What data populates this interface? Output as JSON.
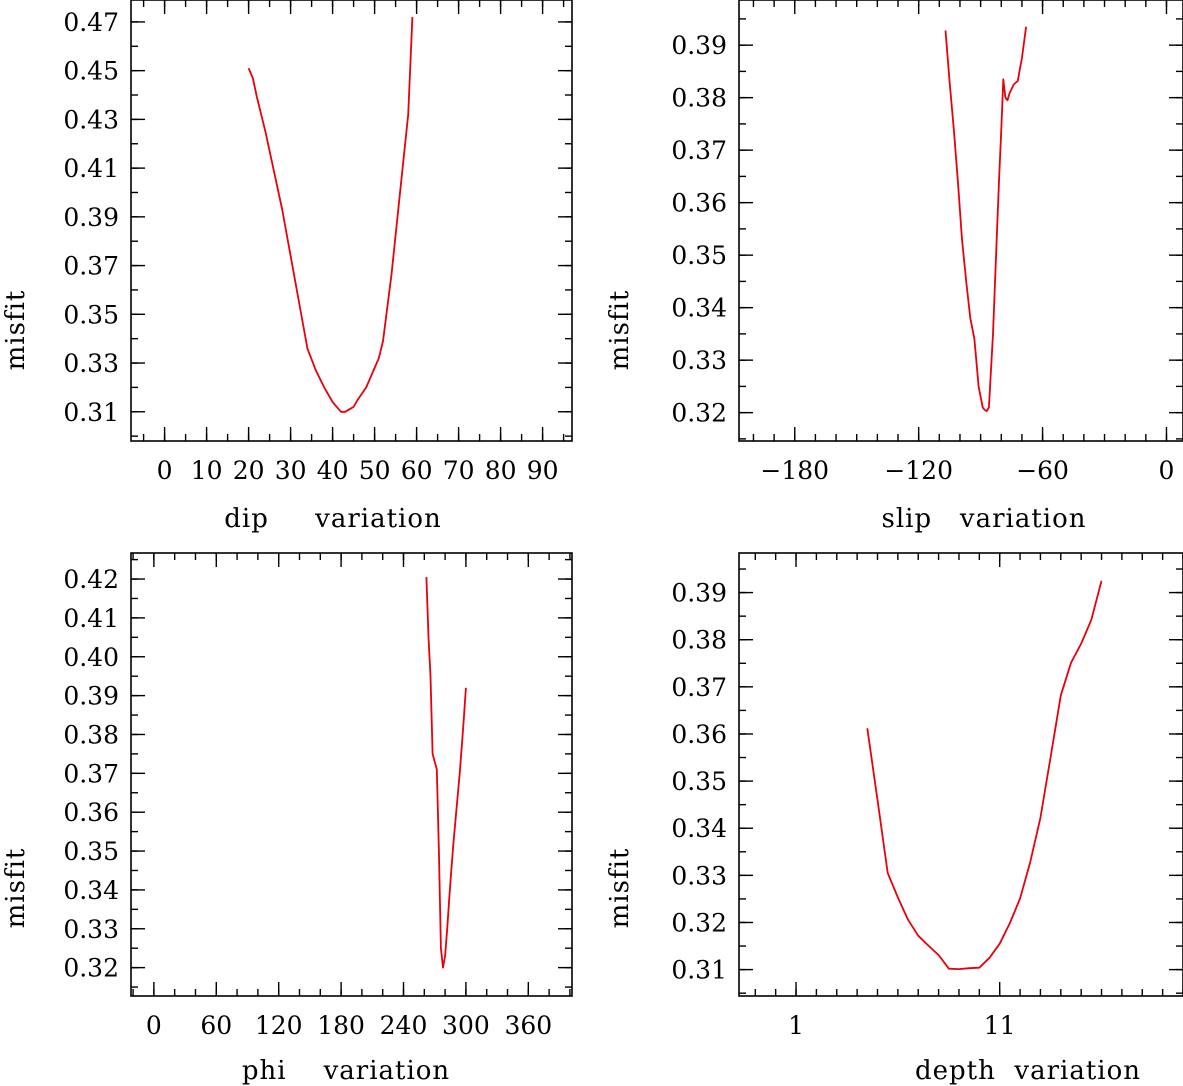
{
  "figure": {
    "title": ""
  },
  "chart_data": [
    {
      "type": "line",
      "xlabel": "dip     variation",
      "ylabel": "misfit",
      "xlim": [
        -8,
        97
      ],
      "ylim": [
        0.298,
        0.479
      ],
      "x_ticks": [
        0,
        10,
        20,
        30,
        40,
        50,
        60,
        70,
        80,
        90
      ],
      "y_ticks": [
        0.31,
        0.33,
        0.35,
        0.37,
        0.39,
        0.41,
        0.43,
        0.45,
        0.47
      ],
      "x_minor_step": 5,
      "y_minor_step": 0.01,
      "color": "#e8000b",
      "x": [
        20,
        21,
        22,
        24,
        26,
        28,
        30,
        32,
        34,
        36,
        38,
        40,
        41,
        42,
        43,
        44,
        45,
        46,
        48,
        50,
        51,
        52,
        54,
        56,
        58,
        59
      ],
      "y": [
        0.451,
        0.447,
        0.439,
        0.425,
        0.409,
        0.393,
        0.374,
        0.355,
        0.336,
        0.327,
        0.32,
        0.314,
        0.312,
        0.31,
        0.31,
        0.311,
        0.312,
        0.315,
        0.32,
        0.328,
        0.332,
        0.339,
        0.366,
        0.399,
        0.432,
        0.472
      ]
    },
    {
      "type": "line",
      "xlabel": "slip   variation",
      "ylabel": "misfit",
      "xlim": [
        -207,
        8
      ],
      "ylim": [
        0.3146,
        0.3986
      ],
      "x_ticks": [
        -180,
        -120,
        -60,
        0
      ],
      "y_ticks": [
        0.32,
        0.33,
        0.34,
        0.35,
        0.36,
        0.37,
        0.38,
        0.39
      ],
      "x_minor_step": 10,
      "y_minor_step": 0.005,
      "color": "#e8000b",
      "x": [
        -107,
        -105,
        -103,
        -101,
        -99,
        -97,
        -95,
        -93,
        -91,
        -89,
        -88,
        -87,
        -86,
        -84,
        -82,
        -81,
        -80,
        -79,
        -78,
        -77,
        -76,
        -74,
        -72,
        -71,
        -70,
        -68
      ],
      "y": [
        0.3928,
        0.383,
        0.374,
        0.364,
        0.353,
        0.345,
        0.338,
        0.334,
        0.325,
        0.321,
        0.3205,
        0.3203,
        0.321,
        0.335,
        0.355,
        0.365,
        0.374,
        0.3835,
        0.38,
        0.3795,
        0.3808,
        0.3825,
        0.3832,
        0.3855,
        0.3875,
        0.3935
      ]
    },
    {
      "type": "line",
      "xlabel": "phi    variation",
      "ylabel": "misfit",
      "xlim": [
        -22,
        402
      ],
      "ylim": [
        0.3127,
        0.4267
      ],
      "x_ticks": [
        0,
        60,
        120,
        180,
        240,
        300,
        360
      ],
      "y_ticks": [
        0.32,
        0.33,
        0.34,
        0.35,
        0.36,
        0.37,
        0.38,
        0.39,
        0.4,
        0.41,
        0.42
      ],
      "x_minor_step": 20,
      "y_minor_step": 0.005,
      "color": "#e8000b",
      "x": [
        262,
        264,
        266,
        268,
        270,
        272,
        274,
        276,
        278,
        280,
        282,
        284,
        286,
        288,
        290,
        292,
        294,
        296,
        298,
        300
      ],
      "y": [
        0.4205,
        0.405,
        0.395,
        0.375,
        0.373,
        0.371,
        0.35,
        0.325,
        0.32,
        0.323,
        0.33,
        0.338,
        0.345,
        0.352,
        0.358,
        0.364,
        0.37,
        0.377,
        0.384,
        0.392
      ]
    },
    {
      "type": "line",
      "xlabel": "depth  variation",
      "ylabel": "misfit",
      "xlim": [
        -1.8,
        20
      ],
      "ylim": [
        0.3044,
        0.3984
      ],
      "x_ticks": [
        1,
        11
      ],
      "x_minor_step": 1,
      "y_ticks": [
        0.31,
        0.32,
        0.33,
        0.34,
        0.35,
        0.36,
        0.37,
        0.38,
        0.39
      ],
      "y_minor_step": 0.005,
      "color": "#e8000b",
      "x": [
        4.5,
        5,
        5.5,
        6,
        6.5,
        7,
        7.5,
        8,
        8.5,
        9,
        9.5,
        10,
        10.5,
        11,
        11.5,
        12,
        12.5,
        13,
        13.5,
        14,
        14.5,
        15,
        15.5,
        16
      ],
      "y": [
        0.3612,
        0.346,
        0.3305,
        0.3253,
        0.3206,
        0.3172,
        0.3151,
        0.3131,
        0.3102,
        0.3101,
        0.3103,
        0.3104,
        0.3125,
        0.3155,
        0.3199,
        0.3251,
        0.3328,
        0.3422,
        0.3551,
        0.3682,
        0.3751,
        0.3792,
        0.3842,
        0.3925
      ]
    }
  ]
}
